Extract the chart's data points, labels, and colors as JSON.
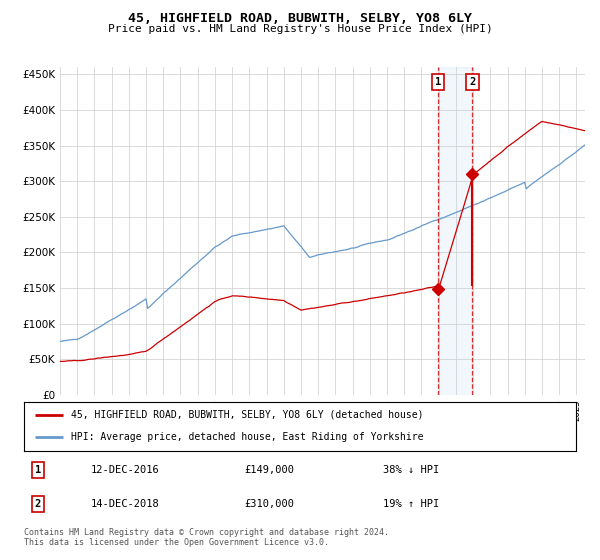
{
  "title": "45, HIGHFIELD ROAD, BUBWITH, SELBY, YO8 6LY",
  "subtitle": "Price paid vs. HM Land Registry's House Price Index (HPI)",
  "red_label": "45, HIGHFIELD ROAD, BUBWITH, SELBY, YO8 6LY (detached house)",
  "blue_label": "HPI: Average price, detached house, East Riding of Yorkshire",
  "transaction1_date": "12-DEC-2016",
  "transaction1_price": 149000,
  "transaction1_pct": "38% ↓ HPI",
  "transaction2_date": "14-DEC-2018",
  "transaction2_price": 310000,
  "transaction2_pct": "19% ↑ HPI",
  "footer": "Contains HM Land Registry data © Crown copyright and database right 2024.\nThis data is licensed under the Open Government Licence v3.0.",
  "ylim": [
    0,
    460000
  ],
  "xlim_start": 1995.0,
  "xlim_end": 2025.5,
  "red_color": "#cc0000",
  "blue_color": "#6699cc",
  "highlight_color": "#ddeeff",
  "vline_color": "#cc0000",
  "grid_color": "#cccccc",
  "background_color": "#ffffff"
}
